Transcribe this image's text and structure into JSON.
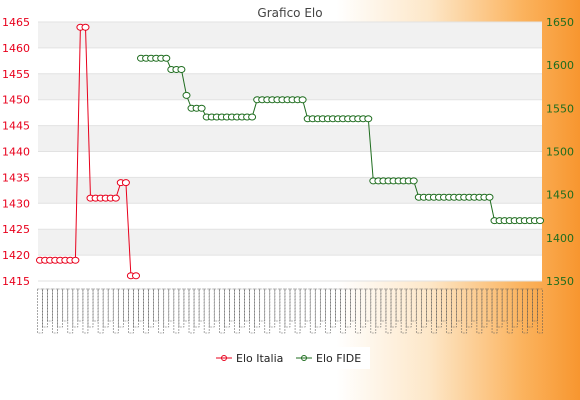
{
  "chart_data": {
    "type": "line",
    "title": "Grafico Elo",
    "colors": {
      "left_axis": "#e8001c",
      "right_axis": "#1f6d1f",
      "series_italia": "#e8001c",
      "series_fide": "#1f6d1f",
      "band": "#f1f1f1"
    },
    "y_left": {
      "lim": [
        1415,
        1465
      ],
      "ticks": [
        1415,
        1420,
        1425,
        1430,
        1435,
        1440,
        1445,
        1450,
        1455,
        1460,
        1465
      ]
    },
    "y_right": {
      "lim": [
        1350,
        1650
      ],
      "ticks": [
        1350,
        1400,
        1450,
        1500,
        1550,
        1600,
        1650
      ]
    },
    "x": {
      "count": 100
    },
    "legend": {
      "position": "bottom-center"
    },
    "series": [
      {
        "name": "Elo Italia",
        "axis": "left",
        "points": [
          [
            0,
            1419
          ],
          [
            1,
            1419
          ],
          [
            2,
            1419
          ],
          [
            3,
            1419
          ],
          [
            4,
            1419
          ],
          [
            5,
            1419
          ],
          [
            6,
            1419
          ],
          [
            7,
            1419
          ],
          [
            8,
            1464
          ],
          [
            9,
            1464
          ],
          [
            10,
            1431
          ],
          [
            11,
            1431
          ],
          [
            12,
            1431
          ],
          [
            13,
            1431
          ],
          [
            14,
            1431
          ],
          [
            15,
            1431
          ],
          [
            16,
            1434
          ],
          [
            17,
            1434
          ],
          [
            18,
            1416
          ],
          [
            19,
            1416
          ]
        ]
      },
      {
        "name": "Elo FIDE",
        "axis": "right",
        "points": [
          [
            20,
            1608
          ],
          [
            21,
            1608
          ],
          [
            22,
            1608
          ],
          [
            23,
            1608
          ],
          [
            24,
            1608
          ],
          [
            25,
            1608
          ],
          [
            26,
            1595
          ],
          [
            27,
            1595
          ],
          [
            28,
            1595
          ],
          [
            29,
            1565
          ],
          [
            30,
            1550
          ],
          [
            31,
            1550
          ],
          [
            32,
            1550
          ],
          [
            33,
            1540
          ],
          [
            34,
            1540
          ],
          [
            35,
            1540
          ],
          [
            36,
            1540
          ],
          [
            37,
            1540
          ],
          [
            38,
            1540
          ],
          [
            39,
            1540
          ],
          [
            40,
            1540
          ],
          [
            41,
            1540
          ],
          [
            42,
            1540
          ],
          [
            43,
            1560
          ],
          [
            44,
            1560
          ],
          [
            45,
            1560
          ],
          [
            46,
            1560
          ],
          [
            47,
            1560
          ],
          [
            48,
            1560
          ],
          [
            49,
            1560
          ],
          [
            50,
            1560
          ],
          [
            51,
            1560
          ],
          [
            52,
            1560
          ],
          [
            53,
            1538
          ],
          [
            54,
            1538
          ],
          [
            55,
            1538
          ],
          [
            56,
            1538
          ],
          [
            57,
            1538
          ],
          [
            58,
            1538
          ],
          [
            59,
            1538
          ],
          [
            60,
            1538
          ],
          [
            61,
            1538
          ],
          [
            62,
            1538
          ],
          [
            63,
            1538
          ],
          [
            64,
            1538
          ],
          [
            65,
            1538
          ],
          [
            66,
            1466
          ],
          [
            67,
            1466
          ],
          [
            68,
            1466
          ],
          [
            69,
            1466
          ],
          [
            70,
            1466
          ],
          [
            71,
            1466
          ],
          [
            72,
            1466
          ],
          [
            73,
            1466
          ],
          [
            74,
            1466
          ],
          [
            75,
            1447
          ],
          [
            76,
            1447
          ],
          [
            77,
            1447
          ],
          [
            78,
            1447
          ],
          [
            79,
            1447
          ],
          [
            80,
            1447
          ],
          [
            81,
            1447
          ],
          [
            82,
            1447
          ],
          [
            83,
            1447
          ],
          [
            84,
            1447
          ],
          [
            85,
            1447
          ],
          [
            86,
            1447
          ],
          [
            87,
            1447
          ],
          [
            88,
            1447
          ],
          [
            89,
            1447
          ],
          [
            90,
            1420
          ],
          [
            91,
            1420
          ],
          [
            92,
            1420
          ],
          [
            93,
            1420
          ],
          [
            94,
            1420
          ],
          [
            95,
            1420
          ],
          [
            96,
            1420
          ],
          [
            97,
            1420
          ],
          [
            98,
            1420
          ],
          [
            99,
            1420
          ]
        ]
      }
    ]
  },
  "legend_items": [
    "Elo Italia",
    "Elo FIDE"
  ]
}
